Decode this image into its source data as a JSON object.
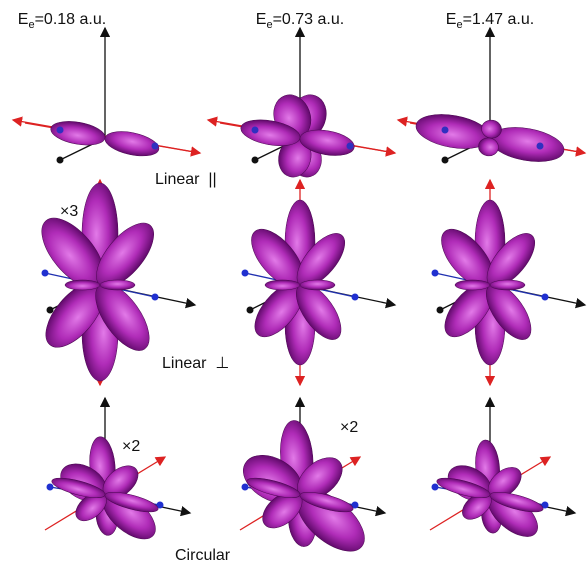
{
  "figure": {
    "columns": [
      {
        "symbol": "E",
        "subscript": "e",
        "value": "=0.18 a.u."
      },
      {
        "symbol": "E",
        "subscript": "e",
        "value": "=0.73 a.u."
      },
      {
        "symbol": "E",
        "subscript": "e",
        "value": "=1.47 a.u."
      }
    ],
    "rows": [
      "Linear  ||",
      "Linear  ⊥",
      "Circular"
    ],
    "annotations": [
      "×3",
      "×2",
      "×2"
    ]
  }
}
